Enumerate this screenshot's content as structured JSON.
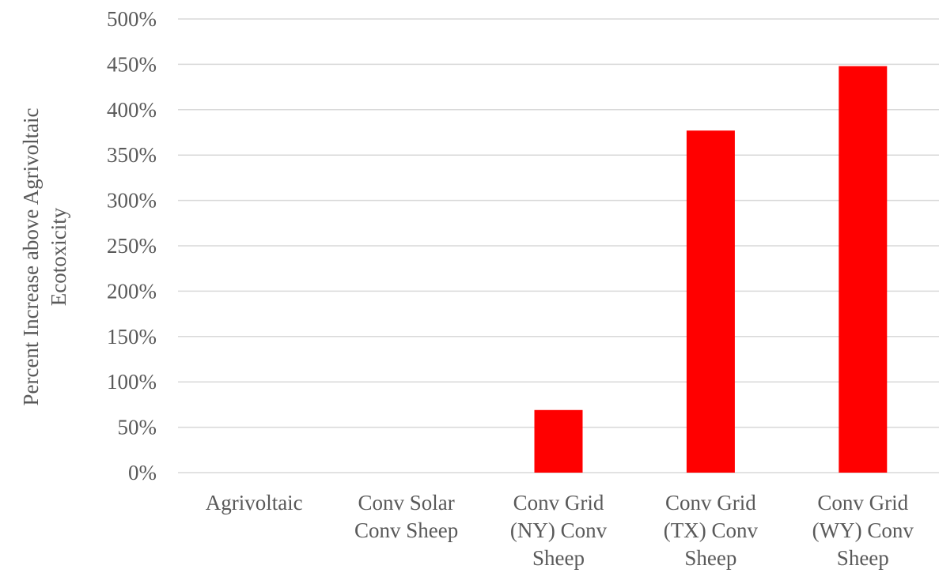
{
  "chart_data": {
    "type": "bar",
    "title": "",
    "xlabel": "",
    "ylabel_lines": [
      "Percent Increase above Agrivoltaic",
      "Ecotoxicity"
    ],
    "categories": [
      [
        "Agrivoltaic"
      ],
      [
        "Conv Solar",
        "Conv Sheep"
      ],
      [
        "Conv Grid",
        "(NY) Conv",
        "Sheep"
      ],
      [
        "Conv Grid",
        "(TX) Conv",
        "Sheep"
      ],
      [
        "Conv Grid",
        "(WY) Conv",
        "Sheep"
      ]
    ],
    "values": [
      0,
      0,
      69,
      377,
      448
    ],
    "ylim": [
      0,
      500
    ],
    "yticks": [
      0,
      50,
      100,
      150,
      200,
      250,
      300,
      350,
      400,
      450,
      500
    ],
    "ytick_labels": [
      "0%",
      "50%",
      "100%",
      "150%",
      "200%",
      "250%",
      "300%",
      "350%",
      "400%",
      "450%",
      "500%"
    ],
    "grid": true,
    "legend": "none",
    "bar_color": "#ff0000"
  }
}
